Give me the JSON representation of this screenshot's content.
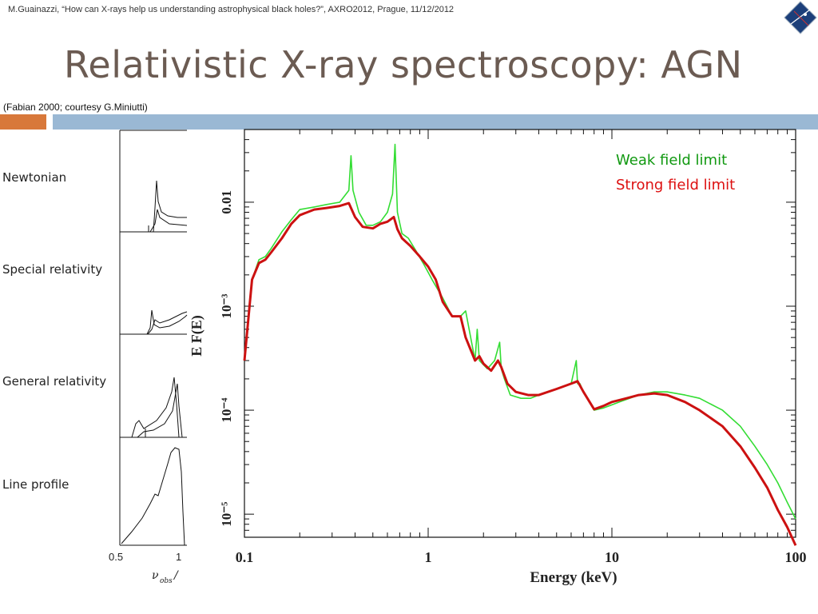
{
  "header": {
    "citation": "M.Guainazzi, “How can X-rays help us understanding astrophysical black holes?”, AXRO2012, Prague, 11/12/2012"
  },
  "slide": {
    "title": "Relativistic X-ray spectroscopy: AGN",
    "credit": "(Fabian 2000; courtesy G.Miniutti)"
  },
  "colors": {
    "orange_bar": "#d8783a",
    "blue_bar": "#9ab8d4",
    "weak": "#33dd33",
    "strong": "#cc1111",
    "title": "#6b5b52"
  },
  "left_panels": {
    "labels": [
      "Newtonian",
      "Special relativity",
      "General relativity",
      "Line profile"
    ],
    "x_ticks": [
      "0.5",
      "1"
    ]
  },
  "chart_data": {
    "type": "line",
    "xlabel": "Energy (keV)",
    "ylabel": "E F(E)",
    "xscale": "log",
    "yscale": "log",
    "xlim": [
      0.1,
      100
    ],
    "ylim": [
      6e-06,
      0.05
    ],
    "x_ticks": [
      {
        "value": 0.1,
        "label": "0.1"
      },
      {
        "value": 1,
        "label": "1"
      },
      {
        "value": 10,
        "label": "10"
      },
      {
        "value": 100,
        "label": "100"
      }
    ],
    "y_ticks": [
      {
        "value": 0.01,
        "label": "0.01"
      },
      {
        "value": 0.001,
        "label": "10⁻³"
      },
      {
        "value": 0.0001,
        "label": "10⁻⁴"
      },
      {
        "value": 1e-05,
        "label": "10⁻⁵"
      }
    ],
    "legend": {
      "placement": "top-right",
      "entries": [
        {
          "label": "Weak field limit",
          "color": "#119911"
        },
        {
          "label": "Strong field limit",
          "color": "#dd1111"
        }
      ]
    },
    "series": [
      {
        "name": "Weak field limit",
        "color": "#33dd33",
        "x": [
          0.1,
          0.11,
          0.12,
          0.13,
          0.14,
          0.16,
          0.18,
          0.2,
          0.24,
          0.28,
          0.33,
          0.37,
          0.38,
          0.39,
          0.42,
          0.46,
          0.5,
          0.55,
          0.6,
          0.64,
          0.66,
          0.68,
          0.72,
          0.78,
          0.85,
          0.95,
          1.05,
          1.2,
          1.35,
          1.5,
          1.6,
          1.8,
          1.85,
          1.9,
          2.1,
          2.3,
          2.45,
          2.5,
          2.6,
          2.8,
          3.2,
          3.6,
          4.0,
          5.0,
          6.0,
          6.4,
          6.5,
          6.7,
          7.0,
          8.0,
          9.0,
          11.0,
          14.0,
          17.0,
          20.0,
          25.0,
          30.0,
          40.0,
          50.0,
          60.0,
          70.0,
          80.0,
          90.0,
          100.0
        ],
        "values": [
          0.0003,
          0.0018,
          0.0028,
          0.003,
          0.0036,
          0.0052,
          0.0068,
          0.0085,
          0.009,
          0.0095,
          0.01,
          0.013,
          0.028,
          0.013,
          0.008,
          0.006,
          0.006,
          0.0065,
          0.008,
          0.012,
          0.036,
          0.008,
          0.005,
          0.0045,
          0.0035,
          0.0025,
          0.0018,
          0.0012,
          0.0008,
          0.0008,
          0.0009,
          0.0003,
          0.0006,
          0.0003,
          0.00025,
          0.0003,
          0.00045,
          0.00025,
          0.0002,
          0.00014,
          0.00013,
          0.00013,
          0.00014,
          0.00016,
          0.00018,
          0.0003,
          0.00018,
          0.00018,
          0.00015,
          0.0001,
          0.000105,
          0.00012,
          0.00014,
          0.00015,
          0.00015,
          0.00014,
          0.00013,
          0.0001,
          7e-05,
          4.5e-05,
          3e-05,
          2e-05,
          1.3e-05,
          9e-06
        ]
      },
      {
        "name": "Strong field limit",
        "color": "#cc1111",
        "x": [
          0.1,
          0.11,
          0.12,
          0.13,
          0.14,
          0.16,
          0.18,
          0.2,
          0.24,
          0.28,
          0.33,
          0.37,
          0.4,
          0.44,
          0.5,
          0.55,
          0.6,
          0.65,
          0.68,
          0.72,
          0.8,
          0.9,
          1.0,
          1.1,
          1.2,
          1.35,
          1.5,
          1.6,
          1.8,
          1.9,
          2.0,
          2.2,
          2.4,
          2.5,
          2.7,
          3.0,
          3.5,
          4.0,
          5.0,
          6.0,
          6.5,
          7.0,
          8.0,
          9.0,
          10.0,
          12.0,
          14.0,
          17.0,
          20.0,
          25.0,
          30.0,
          40.0,
          50.0,
          60.0,
          70.0,
          80.0,
          90.0,
          100.0
        ],
        "values": [
          0.0003,
          0.0018,
          0.0026,
          0.0028,
          0.0033,
          0.0045,
          0.0062,
          0.0075,
          0.0085,
          0.0088,
          0.0092,
          0.0098,
          0.0072,
          0.0058,
          0.0056,
          0.0062,
          0.0065,
          0.0072,
          0.0055,
          0.0045,
          0.0038,
          0.003,
          0.0024,
          0.0018,
          0.0011,
          0.0008,
          0.0008,
          0.0005,
          0.0003,
          0.00033,
          0.00028,
          0.00024,
          0.0003,
          0.00026,
          0.00018,
          0.00015,
          0.00014,
          0.00014,
          0.00016,
          0.00018,
          0.00019,
          0.00015,
          0.000102,
          0.00011,
          0.00012,
          0.00013,
          0.00014,
          0.000145,
          0.00014,
          0.00012,
          0.0001,
          7e-05,
          4.5e-05,
          2.8e-05,
          1.8e-05,
          1.1e-05,
          7.5e-06,
          5e-06
        ]
      }
    ]
  }
}
